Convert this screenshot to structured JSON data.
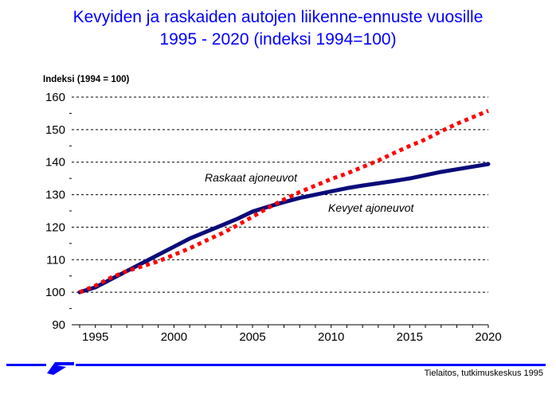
{
  "chart_data": {
    "type": "line",
    "title_line1": "Kevyiden ja raskaiden autojen liikenne-ennuste vuosille",
    "title_line2": "1995 - 2020 (indeksi 1994=100)",
    "ylabel": "Indeksi (1994 = 100)",
    "xlabel": "",
    "xlim": [
      1994,
      2020
    ],
    "ylim": [
      90,
      160
    ],
    "x_ticks": [
      1995,
      2000,
      2005,
      2010,
      2015,
      2020
    ],
    "y_ticks": [
      90,
      100,
      110,
      120,
      130,
      140,
      150,
      160
    ],
    "grid": "horizontal-dashed",
    "series": [
      {
        "name": "Kevyet ajoneuvot",
        "color": "#0b0b7a",
        "style": "solid",
        "x": [
          1994,
          1995,
          1996,
          1997,
          1998,
          1999,
          2000,
          2001,
          2002,
          2003,
          2004,
          2005,
          2006,
          2007,
          2008,
          2009,
          2010,
          2011,
          2012,
          2013,
          2014,
          2015,
          2016,
          2017,
          2018,
          2019,
          2020
        ],
        "values": [
          100,
          101.5,
          104,
          106.5,
          109,
          111.5,
          114,
          116.5,
          118.5,
          120.5,
          122.5,
          124.8,
          126.3,
          127.7,
          129,
          130,
          131,
          132,
          132.8,
          133.5,
          134.2,
          135,
          136,
          137,
          137.8,
          138.6,
          139.4
        ]
      },
      {
        "name": "Raskaat ajoneuvot",
        "color": "#ff0000",
        "style": "dotted",
        "x": [
          1994,
          1995,
          1996,
          1997,
          1998,
          1999,
          2000,
          2001,
          2002,
          2003,
          2004,
          2005,
          2006,
          2007,
          2008,
          2009,
          2010,
          2011,
          2012,
          2013,
          2014,
          2015,
          2016,
          2017,
          2018,
          2019,
          2020
        ],
        "values": [
          100,
          102,
          104.5,
          106.5,
          108,
          109.5,
          111.5,
          113.5,
          115.8,
          118,
          120.5,
          123.2,
          126,
          128.5,
          130.8,
          132.8,
          134.8,
          136.5,
          138.5,
          140.5,
          142.8,
          145,
          147,
          149.5,
          151.8,
          153.8,
          155.8
        ]
      }
    ]
  },
  "footer": {
    "credit": "Tielaitos, tutkimuskeskus 1995",
    "rule_color": "#0000ff"
  }
}
